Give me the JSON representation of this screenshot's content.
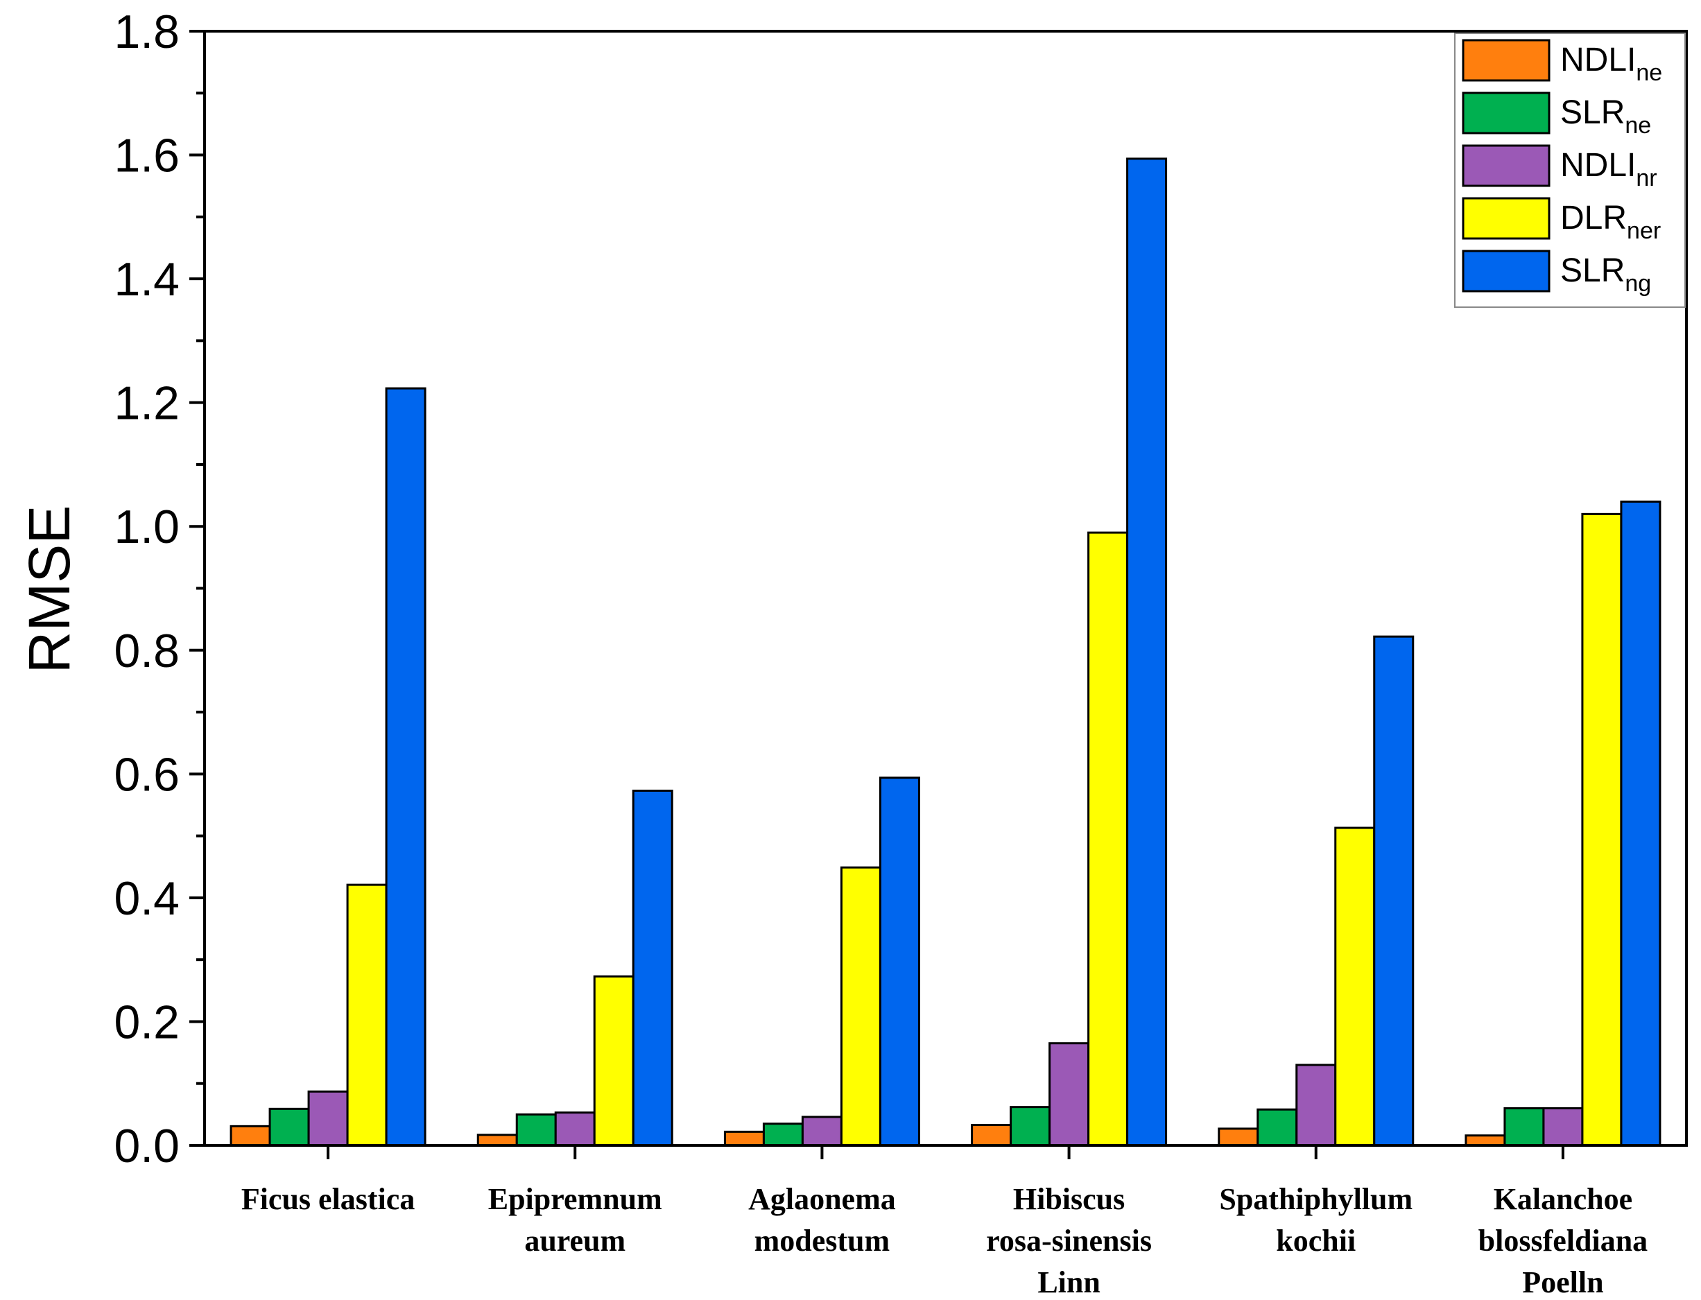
{
  "chart_data": {
    "type": "bar",
    "title": "",
    "xlabel": "",
    "ylabel": "RMSE",
    "ylim": [
      0,
      1.8
    ],
    "yticks": [
      "0.0",
      "0.2",
      "0.4",
      "0.6",
      "0.8",
      "1.0",
      "1.2",
      "1.4",
      "1.6",
      "1.8"
    ],
    "categories": [
      [
        "Ficus elastica"
      ],
      [
        "Epipremnum",
        "aureum"
      ],
      [
        "Aglaonema",
        "modestum"
      ],
      [
        "Hibiscus",
        "rosa-sinensis",
        "Linn"
      ],
      [
        "Spathiphyllum",
        "kochii"
      ],
      [
        "Kalanchoe",
        "blossfeldiana",
        "Poelln"
      ]
    ],
    "legend_position": "top-right",
    "series": [
      {
        "name": "NDLI",
        "sub": "ne",
        "color": "#ff7f0e",
        "values": [
          0.031,
          0.017,
          0.022,
          0.033,
          0.027,
          0.016
        ]
      },
      {
        "name": "SLR",
        "sub": "ne",
        "color": "#00b050",
        "values": [
          0.059,
          0.05,
          0.035,
          0.062,
          0.058,
          0.06
        ]
      },
      {
        "name": "NDLI",
        "sub": "nr",
        "color": "#9b59b6",
        "values": [
          0.087,
          0.053,
          0.046,
          0.165,
          0.13,
          0.06
        ]
      },
      {
        "name": "DLR",
        "sub": "ner",
        "color": "#ffff00",
        "values": [
          0.421,
          0.273,
          0.449,
          0.99,
          0.513,
          1.02
        ]
      },
      {
        "name": "SLR",
        "sub": "ng",
        "color": "#0066ee",
        "values": [
          1.223,
          0.573,
          0.594,
          1.594,
          0.822,
          1.04
        ]
      }
    ]
  }
}
